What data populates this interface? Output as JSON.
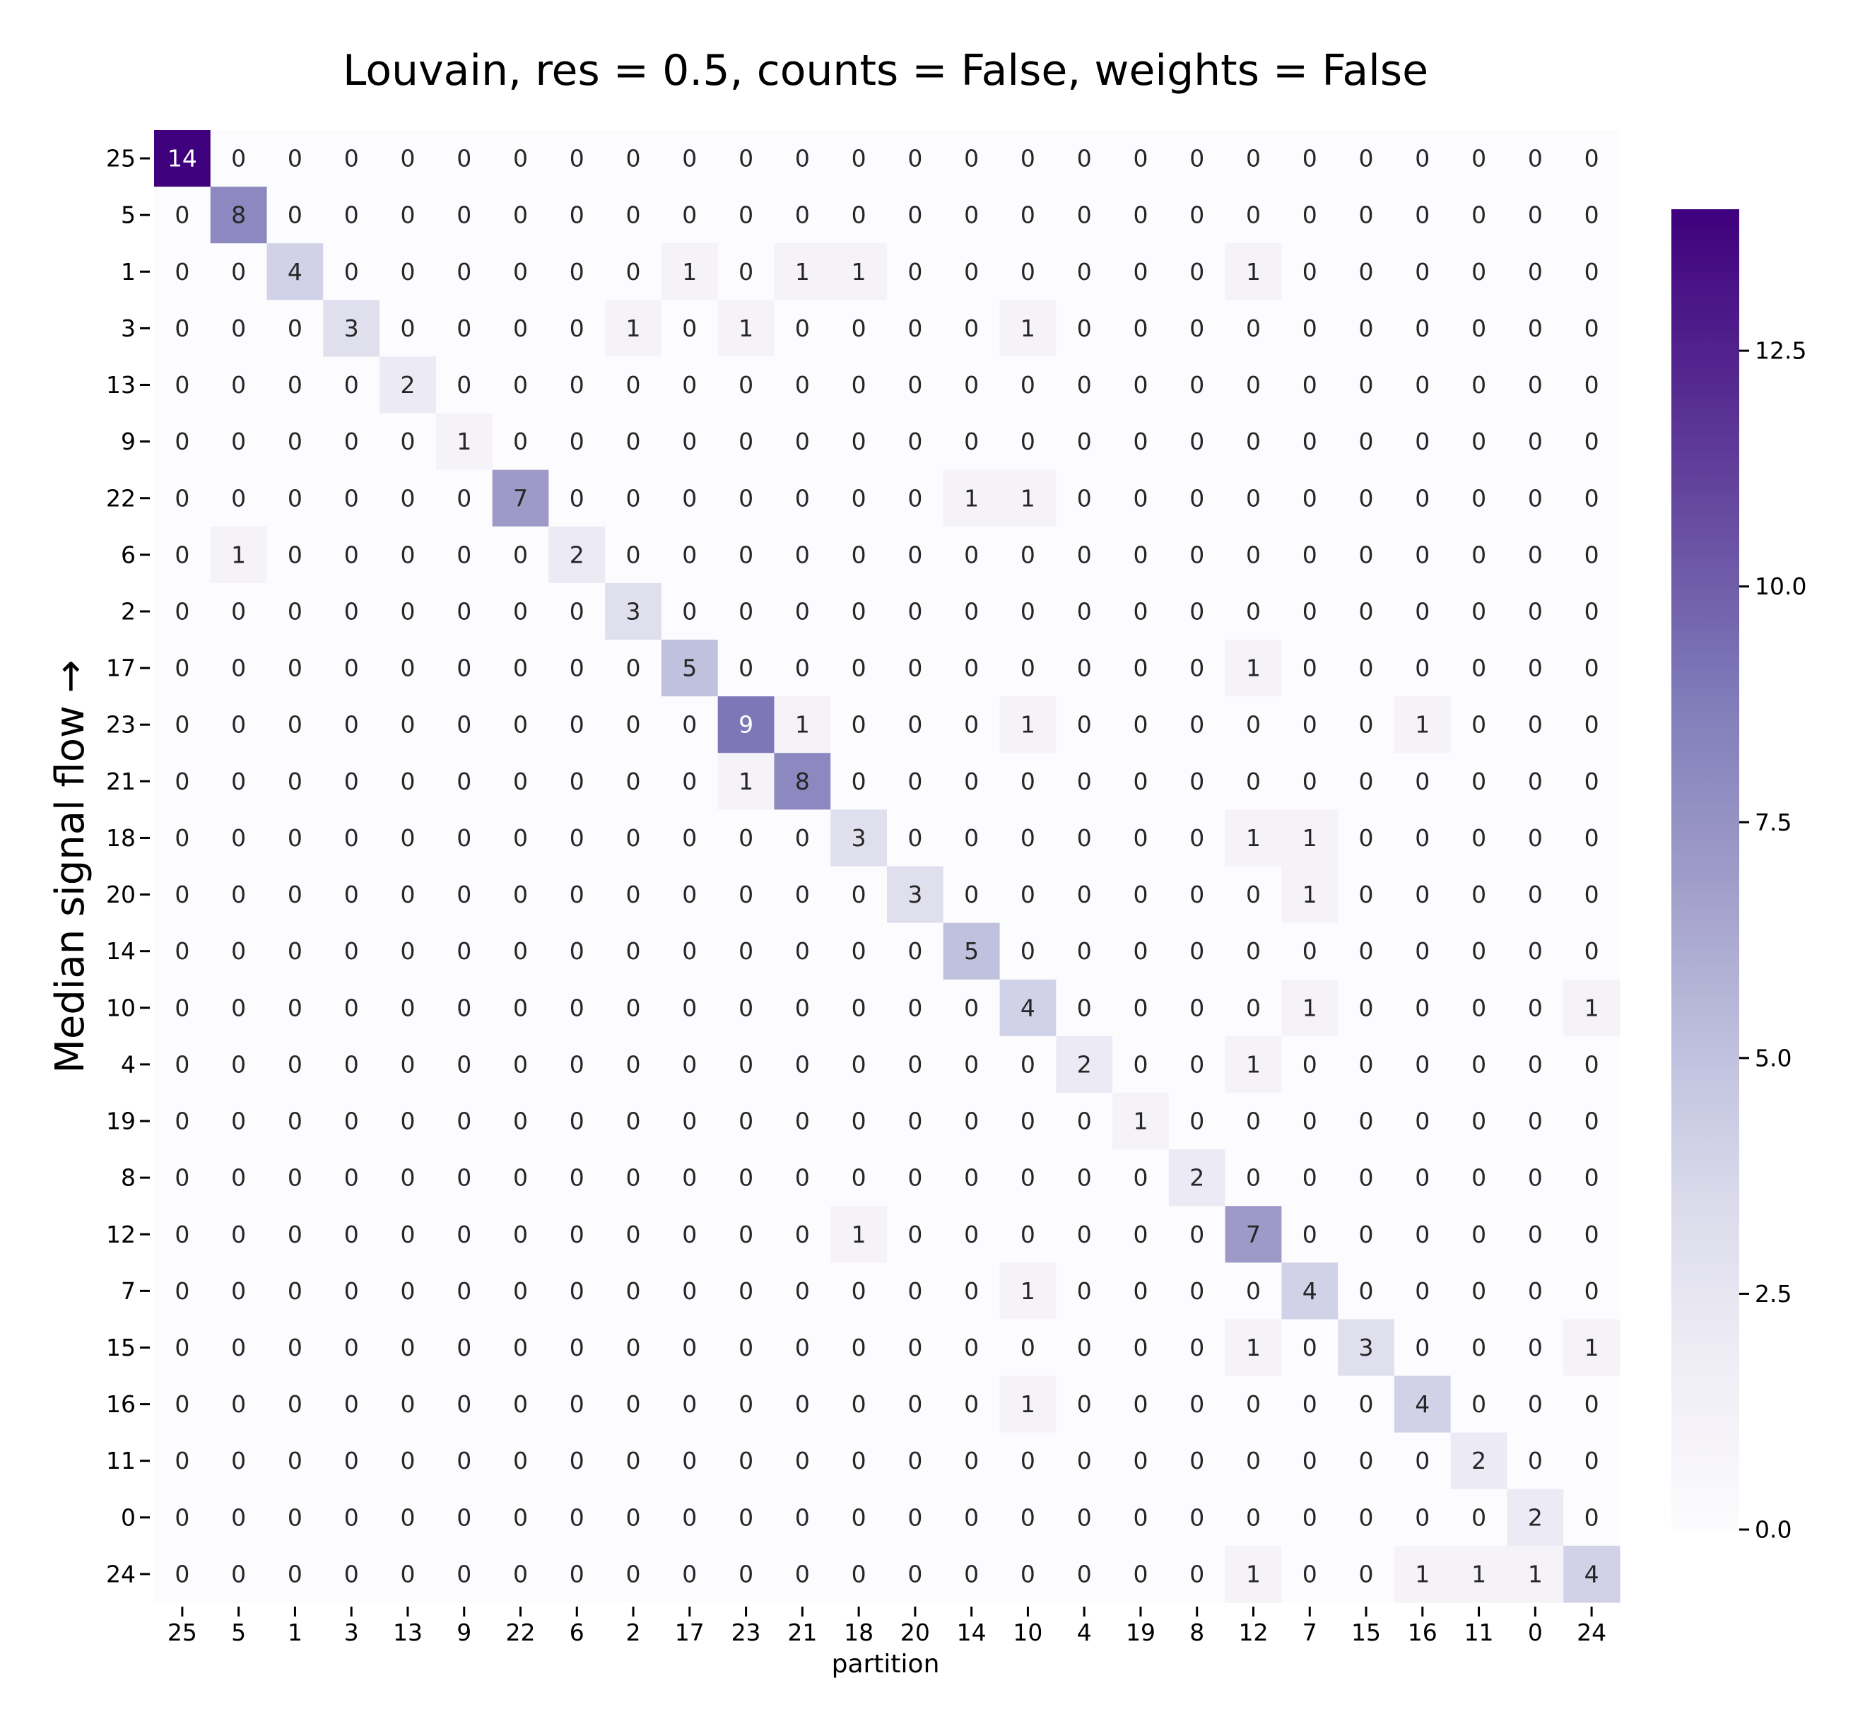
{
  "chart_data": {
    "type": "heatmap",
    "title": "Louvain, res = 0.5, counts = False, weights = False",
    "xlabel": "partition",
    "ylabel": "Median signal flow →",
    "x_categories": [
      "25",
      "5",
      "1",
      "3",
      "13",
      "9",
      "22",
      "6",
      "2",
      "17",
      "23",
      "21",
      "18",
      "20",
      "14",
      "10",
      "4",
      "19",
      "8",
      "12",
      "7",
      "15",
      "16",
      "11",
      "0",
      "24"
    ],
    "y_categories": [
      "25",
      "5",
      "1",
      "3",
      "13",
      "9",
      "22",
      "6",
      "2",
      "17",
      "23",
      "21",
      "18",
      "20",
      "14",
      "10",
      "4",
      "19",
      "8",
      "12",
      "7",
      "15",
      "16",
      "11",
      "0",
      "24"
    ],
    "values": [
      [
        14,
        0,
        0,
        0,
        0,
        0,
        0,
        0,
        0,
        0,
        0,
        0,
        0,
        0,
        0,
        0,
        0,
        0,
        0,
        0,
        0,
        0,
        0,
        0,
        0,
        0
      ],
      [
        0,
        8,
        0,
        0,
        0,
        0,
        0,
        0,
        0,
        0,
        0,
        0,
        0,
        0,
        0,
        0,
        0,
        0,
        0,
        0,
        0,
        0,
        0,
        0,
        0,
        0
      ],
      [
        0,
        0,
        4,
        0,
        0,
        0,
        0,
        0,
        0,
        1,
        0,
        1,
        1,
        0,
        0,
        0,
        0,
        0,
        0,
        1,
        0,
        0,
        0,
        0,
        0,
        0
      ],
      [
        0,
        0,
        0,
        3,
        0,
        0,
        0,
        0,
        1,
        0,
        1,
        0,
        0,
        0,
        0,
        1,
        0,
        0,
        0,
        0,
        0,
        0,
        0,
        0,
        0,
        0
      ],
      [
        0,
        0,
        0,
        0,
        2,
        0,
        0,
        0,
        0,
        0,
        0,
        0,
        0,
        0,
        0,
        0,
        0,
        0,
        0,
        0,
        0,
        0,
        0,
        0,
        0,
        0
      ],
      [
        0,
        0,
        0,
        0,
        0,
        1,
        0,
        0,
        0,
        0,
        0,
        0,
        0,
        0,
        0,
        0,
        0,
        0,
        0,
        0,
        0,
        0,
        0,
        0,
        0,
        0
      ],
      [
        0,
        0,
        0,
        0,
        0,
        0,
        7,
        0,
        0,
        0,
        0,
        0,
        0,
        0,
        1,
        1,
        0,
        0,
        0,
        0,
        0,
        0,
        0,
        0,
        0,
        0
      ],
      [
        0,
        1,
        0,
        0,
        0,
        0,
        0,
        2,
        0,
        0,
        0,
        0,
        0,
        0,
        0,
        0,
        0,
        0,
        0,
        0,
        0,
        0,
        0,
        0,
        0,
        0
      ],
      [
        0,
        0,
        0,
        0,
        0,
        0,
        0,
        0,
        3,
        0,
        0,
        0,
        0,
        0,
        0,
        0,
        0,
        0,
        0,
        0,
        0,
        0,
        0,
        0,
        0,
        0
      ],
      [
        0,
        0,
        0,
        0,
        0,
        0,
        0,
        0,
        0,
        5,
        0,
        0,
        0,
        0,
        0,
        0,
        0,
        0,
        0,
        1,
        0,
        0,
        0,
        0,
        0,
        0
      ],
      [
        0,
        0,
        0,
        0,
        0,
        0,
        0,
        0,
        0,
        0,
        9,
        1,
        0,
        0,
        0,
        1,
        0,
        0,
        0,
        0,
        0,
        0,
        1,
        0,
        0,
        0
      ],
      [
        0,
        0,
        0,
        0,
        0,
        0,
        0,
        0,
        0,
        0,
        1,
        8,
        0,
        0,
        0,
        0,
        0,
        0,
        0,
        0,
        0,
        0,
        0,
        0,
        0,
        0
      ],
      [
        0,
        0,
        0,
        0,
        0,
        0,
        0,
        0,
        0,
        0,
        0,
        0,
        3,
        0,
        0,
        0,
        0,
        0,
        0,
        1,
        1,
        0,
        0,
        0,
        0,
        0
      ],
      [
        0,
        0,
        0,
        0,
        0,
        0,
        0,
        0,
        0,
        0,
        0,
        0,
        0,
        3,
        0,
        0,
        0,
        0,
        0,
        0,
        1,
        0,
        0,
        0,
        0,
        0
      ],
      [
        0,
        0,
        0,
        0,
        0,
        0,
        0,
        0,
        0,
        0,
        0,
        0,
        0,
        0,
        5,
        0,
        0,
        0,
        0,
        0,
        0,
        0,
        0,
        0,
        0,
        0
      ],
      [
        0,
        0,
        0,
        0,
        0,
        0,
        0,
        0,
        0,
        0,
        0,
        0,
        0,
        0,
        0,
        4,
        0,
        0,
        0,
        0,
        1,
        0,
        0,
        0,
        0,
        1
      ],
      [
        0,
        0,
        0,
        0,
        0,
        0,
        0,
        0,
        0,
        0,
        0,
        0,
        0,
        0,
        0,
        0,
        2,
        0,
        0,
        1,
        0,
        0,
        0,
        0,
        0,
        0
      ],
      [
        0,
        0,
        0,
        0,
        0,
        0,
        0,
        0,
        0,
        0,
        0,
        0,
        0,
        0,
        0,
        0,
        0,
        1,
        0,
        0,
        0,
        0,
        0,
        0,
        0,
        0
      ],
      [
        0,
        0,
        0,
        0,
        0,
        0,
        0,
        0,
        0,
        0,
        0,
        0,
        0,
        0,
        0,
        0,
        0,
        0,
        2,
        0,
        0,
        0,
        0,
        0,
        0,
        0
      ],
      [
        0,
        0,
        0,
        0,
        0,
        0,
        0,
        0,
        0,
        0,
        0,
        0,
        1,
        0,
        0,
        0,
        0,
        0,
        0,
        7,
        0,
        0,
        0,
        0,
        0,
        0
      ],
      [
        0,
        0,
        0,
        0,
        0,
        0,
        0,
        0,
        0,
        0,
        0,
        0,
        0,
        0,
        0,
        1,
        0,
        0,
        0,
        0,
        4,
        0,
        0,
        0,
        0,
        0
      ],
      [
        0,
        0,
        0,
        0,
        0,
        0,
        0,
        0,
        0,
        0,
        0,
        0,
        0,
        0,
        0,
        0,
        0,
        0,
        0,
        1,
        0,
        3,
        0,
        0,
        0,
        1
      ],
      [
        0,
        0,
        0,
        0,
        0,
        0,
        0,
        0,
        0,
        0,
        0,
        0,
        0,
        0,
        0,
        1,
        0,
        0,
        0,
        0,
        0,
        0,
        4,
        0,
        0,
        0
      ],
      [
        0,
        0,
        0,
        0,
        0,
        0,
        0,
        0,
        0,
        0,
        0,
        0,
        0,
        0,
        0,
        0,
        0,
        0,
        0,
        0,
        0,
        0,
        0,
        2,
        0,
        0
      ],
      [
        0,
        0,
        0,
        0,
        0,
        0,
        0,
        0,
        0,
        0,
        0,
        0,
        0,
        0,
        0,
        0,
        0,
        0,
        0,
        0,
        0,
        0,
        0,
        0,
        2,
        0
      ],
      [
        0,
        0,
        0,
        0,
        0,
        0,
        0,
        0,
        0,
        0,
        0,
        0,
        0,
        0,
        0,
        0,
        0,
        0,
        0,
        1,
        0,
        0,
        1,
        1,
        1,
        4
      ]
    ],
    "colormap": "Purples",
    "color_range": [
      0,
      14
    ],
    "colorbar_ticks": [
      0.0,
      2.5,
      5.0,
      7.5,
      10.0,
      12.5
    ],
    "colorbar_tick_labels": [
      "0.0",
      "2.5",
      "5.0",
      "7.5",
      "10.0",
      "12.5"
    ],
    "annotated": true,
    "grid": false,
    "legend": "colorbar-right"
  }
}
